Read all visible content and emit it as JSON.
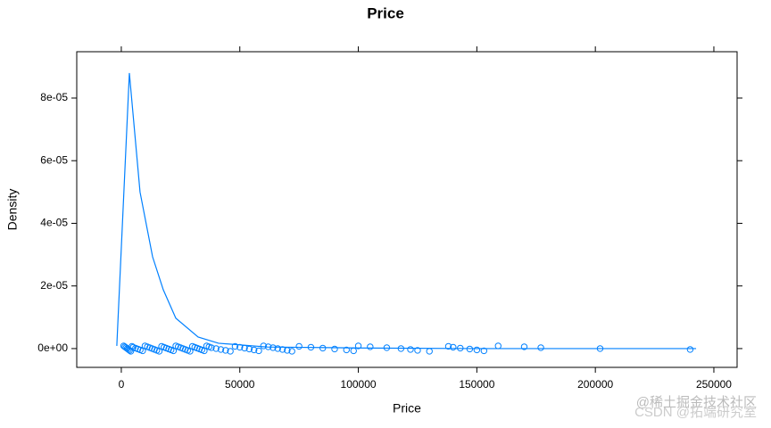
{
  "chart_data": {
    "type": "density",
    "title": "Price",
    "xlabel": "Price",
    "ylabel": "Density",
    "color": "#0080ff",
    "x": [
      -1900,
      3400,
      7900,
      13200,
      17700,
      23000,
      32400,
      41000,
      61700,
      99400,
      150000,
      242500
    ],
    "values": [
      8.5e-07,
      8.8e-05,
      5e-05,
      2.93e-05,
      1.88e-05,
      9.7e-06,
      3.7e-06,
      1.7e-06,
      5e-07,
      2e-07,
      0,
      0
    ],
    "points": [
      1000,
      1500,
      2000,
      2500,
      3000,
      3500,
      4000,
      4500,
      5000,
      6000,
      7000,
      8000,
      9000,
      10000,
      11000,
      12000,
      13000,
      14000,
      15000,
      16000,
      17000,
      18000,
      19000,
      20000,
      21000,
      22000,
      23000,
      24000,
      25000,
      26000,
      27000,
      28000,
      29000,
      30000,
      31000,
      32000,
      33000,
      34000,
      35000,
      36000,
      37000,
      38000,
      40000,
      42000,
      44000,
      46000,
      48000,
      50000,
      52000,
      54000,
      56000,
      58000,
      60000,
      62000,
      64000,
      66000,
      68000,
      70000,
      72000,
      75000,
      80000,
      85000,
      90000,
      95000,
      98000,
      100000,
      105000,
      112000,
      118000,
      122000,
      125000,
      130000,
      138000,
      140000,
      143000,
      147000,
      150000,
      153000,
      159000,
      170000,
      177000,
      202000,
      240000
    ],
    "xlim": [
      -18800,
      259800
    ],
    "ylim": [
      -6e-06,
      9.48e-05
    ],
    "xticks": [
      0,
      50000,
      100000,
      150000,
      200000,
      250000
    ],
    "yticks": [
      {
        "value": 0,
        "label": "0e+00"
      },
      {
        "value": 2e-05,
        "label": "2e-05"
      },
      {
        "value": 4e-05,
        "label": "4e-05"
      },
      {
        "value": 6e-05,
        "label": "6e-05"
      },
      {
        "value": 8e-05,
        "label": "8e-05"
      }
    ],
    "watermark": [
      "@稀土掘金技术社区",
      "CSDN @拓端研究室"
    ]
  }
}
